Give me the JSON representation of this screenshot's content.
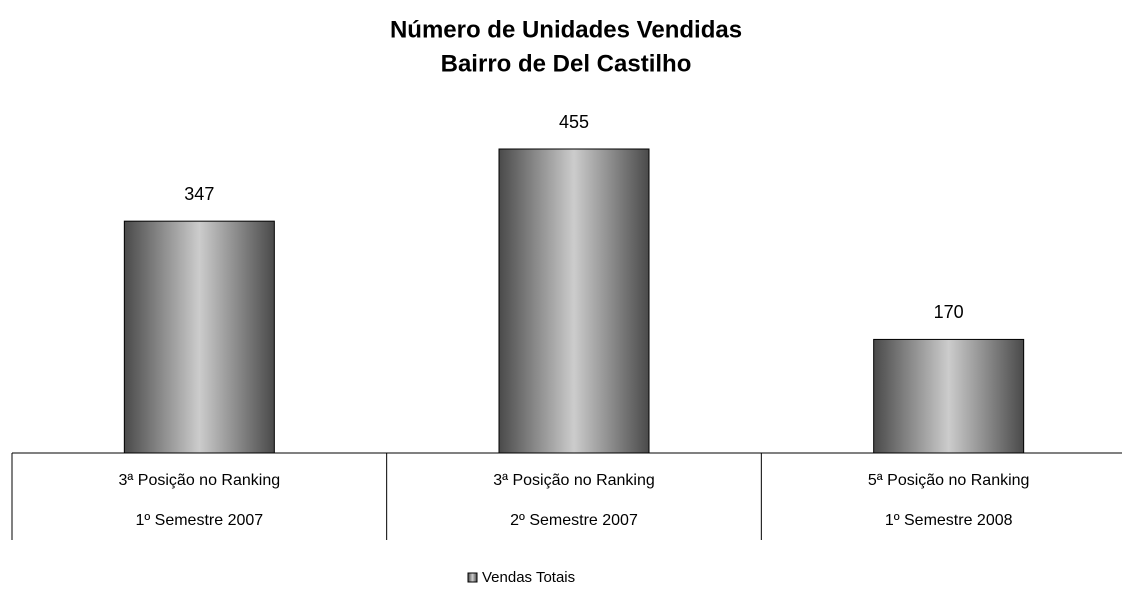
{
  "chart_data": {
    "type": "bar",
    "title": [
      "Número de Unidades Vendidas",
      "Bairro de Del Castilho"
    ],
    "categories": [
      [
        "3ª Posição no Ranking",
        "1º Semestre 2007"
      ],
      [
        "3ª Posição no Ranking",
        "2º Semestre 2007"
      ],
      [
        "5ª Posição no Ranking",
        "1º Semestre 2008"
      ]
    ],
    "series": [
      {
        "name": "Vendas Totais",
        "values": [
          347,
          455,
          170
        ]
      }
    ],
    "legend": "bottom"
  }
}
